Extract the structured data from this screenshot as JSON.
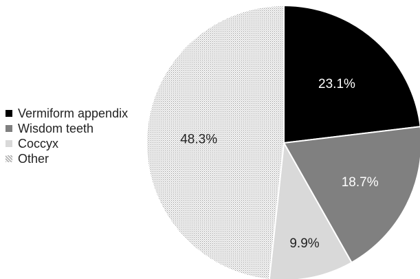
{
  "chart_data": {
    "type": "pie",
    "title": "",
    "categories": [
      "Vermiform appendix",
      "Wisdom teeth",
      "Coccyx",
      "Other"
    ],
    "values": [
      23.1,
      18.7,
      9.9,
      48.3
    ],
    "labels": [
      "23.1%",
      "18.7%",
      "9.9%",
      "48.3%"
    ],
    "unit": "%",
    "start_angle": "12 o'clock",
    "direction": "clockwise",
    "legend": "left",
    "colors": [
      "#000000",
      "#808080",
      "#d9d9d9",
      "dotted-grey"
    ],
    "label_colors": [
      "#ffffff",
      "#ffffff",
      "#222222",
      "#222222"
    ]
  }
}
